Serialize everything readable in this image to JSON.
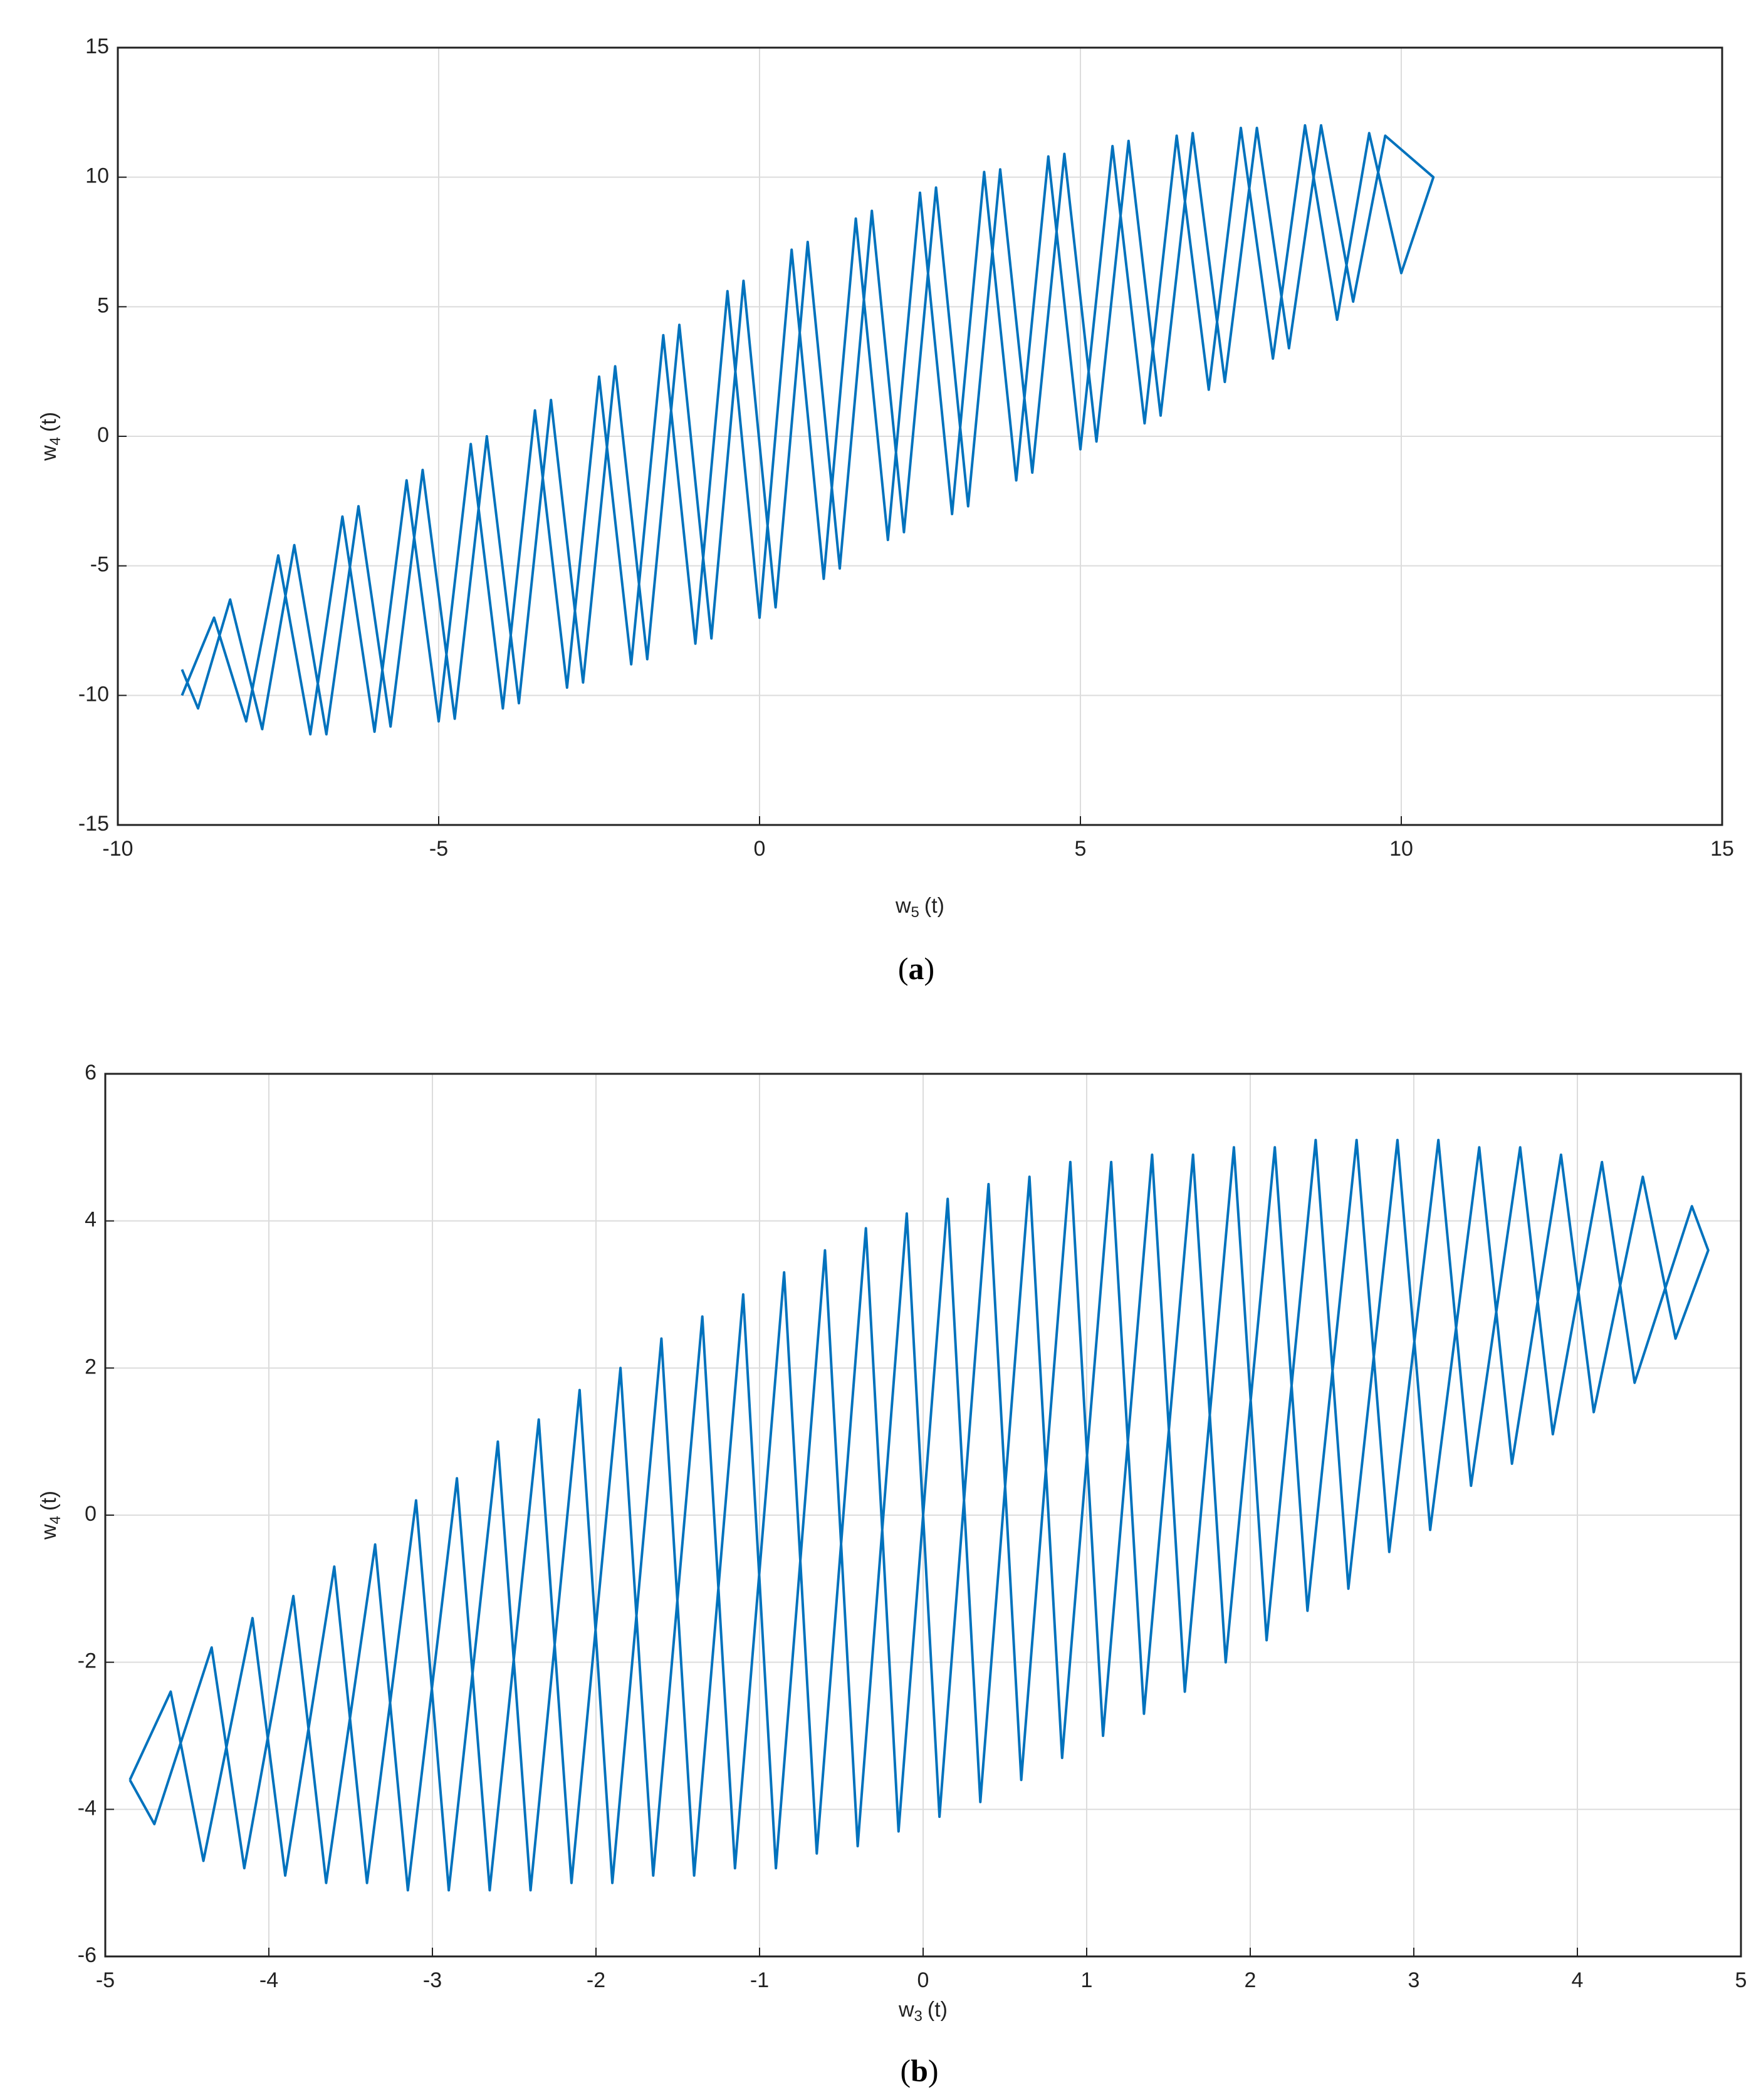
{
  "chart_data": [
    {
      "type": "line",
      "xlabel": [
        "w",
        "5",
        "(t)"
      ],
      "ylabel": [
        "w",
        "4",
        "(t)"
      ],
      "caption": [
        "(",
        "a",
        ")"
      ],
      "xlim": [
        -10,
        15
      ],
      "ylim": [
        -15,
        15
      ],
      "xticks": [
        -10,
        -5,
        0,
        5,
        10,
        15
      ],
      "yticks": [
        -15,
        -10,
        -5,
        0,
        5,
        10,
        15
      ],
      "grid": true,
      "x": [
        -9,
        -8.5,
        -8,
        -7.5,
        -7,
        -6.5,
        -6,
        -5.5,
        -5,
        -4.5,
        -4,
        -3.5,
        -3,
        -2.5,
        -2,
        -1.5,
        -1,
        -0.5,
        0,
        0.5,
        1,
        1.5,
        2,
        2.5,
        3,
        3.5,
        4,
        4.5,
        5,
        5.5,
        6,
        6.5,
        7,
        7.5,
        8,
        8.5,
        9,
        9.5,
        10,
        10.5,
        9.75,
        9.25,
        8.75,
        8.25,
        7.75,
        7.25,
        6.75,
        6.25,
        5.75,
        5.25,
        4.75,
        4.25,
        3.75,
        3.25,
        2.75,
        2.25,
        1.75,
        1.25,
        0.75,
        0.25,
        -0.25,
        -0.75,
        -1.25,
        -1.75,
        -2.25,
        -2.75,
        -3.25,
        -3.75,
        -4.25,
        -4.75,
        -5.25,
        -5.75,
        -6.25,
        -6.75,
        -7.25,
        -7.75,
        -8.25,
        -8.75,
        -9
      ],
      "series": [
        {
          "color": "#0072bd",
          "values": [
            -10,
            -7,
            -11,
            -4.6,
            -11.5,
            -3.1,
            -11.4,
            -1.7,
            -11,
            -0.3,
            -10.5,
            1,
            -9.7,
            2.3,
            -8.8,
            3.9,
            -8,
            5.6,
            -7,
            7.2,
            -5.5,
            8.4,
            -4,
            9.4,
            -3,
            10.2,
            -1.7,
            10.8,
            -0.5,
            11.2,
            0.5,
            11.6,
            1.8,
            11.9,
            3,
            12,
            4.5,
            11.7,
            6.3,
            10,
            11.6,
            5.2,
            12,
            3.4,
            11.9,
            2.1,
            11.7,
            0.8,
            11.4,
            -0.2,
            10.9,
            -1.4,
            10.3,
            -2.7,
            9.6,
            -3.7,
            8.7,
            -5.1,
            7.5,
            -6.6,
            6,
            -7.8,
            4.3,
            -8.6,
            2.7,
            -9.5,
            1.4,
            -10.3,
            0,
            -10.9,
            -1.3,
            -11.2,
            -2.7,
            -11.5,
            -4.2,
            -11.3,
            -6.3,
            -10.5,
            -9
          ]
        }
      ]
    },
    {
      "type": "line",
      "xlabel": [
        "w",
        "3",
        "(t)"
      ],
      "ylabel": [
        "w",
        "4",
        "(t)"
      ],
      "caption": [
        "(",
        "b",
        ")"
      ],
      "xlim": [
        -5,
        5
      ],
      "ylim": [
        -6,
        6
      ],
      "xticks": [
        -5,
        -4,
        -3,
        -2,
        -1,
        0,
        1,
        2,
        3,
        4,
        5
      ],
      "yticks": [
        -6,
        -4,
        -2,
        0,
        2,
        4,
        6
      ],
      "grid": true,
      "x": [
        -4.85,
        -4.6,
        -4.4,
        -4.1,
        -3.9,
        -3.6,
        -3.4,
        -3.1,
        -2.9,
        -2.6,
        -2.4,
        -2.1,
        -1.9,
        -1.6,
        -1.4,
        -1.1,
        -0.9,
        -0.6,
        -0.4,
        -0.1,
        0.1,
        0.4,
        0.6,
        0.9,
        1.1,
        1.4,
        1.6,
        1.9,
        2.1,
        2.4,
        2.6,
        2.9,
        3.1,
        3.4,
        3.6,
        3.9,
        4.1,
        4.4,
        4.6,
        4.8,
        4.7,
        4.35,
        4.15,
        3.85,
        3.65,
        3.35,
        3.15,
        2.85,
        2.65,
        2.35,
        2.15,
        1.85,
        1.65,
        1.35,
        1.15,
        0.85,
        0.65,
        0.35,
        0.15,
        -0.15,
        -0.35,
        -0.65,
        -0.85,
        -1.15,
        -1.35,
        -1.65,
        -1.85,
        -2.15,
        -2.35,
        -2.65,
        -2.85,
        -3.15,
        -3.35,
        -3.65,
        -3.85,
        -4.15,
        -4.35,
        -4.7,
        -4.85
      ],
      "series": [
        {
          "color": "#0072bd",
          "values": [
            -3.6,
            -2.4,
            -4.7,
            -1.4,
            -4.9,
            -0.7,
            -5,
            0.2,
            -5.1,
            1,
            -5.1,
            1.7,
            -5,
            2.4,
            -4.9,
            3,
            -4.8,
            3.6,
            -4.5,
            4.1,
            -4.1,
            4.5,
            -3.6,
            4.8,
            -3,
            4.9,
            -2.4,
            5,
            -1.7,
            5.1,
            -1,
            5.1,
            -0.2,
            5,
            0.7,
            4.9,
            1.4,
            4.6,
            2.4,
            3.6,
            4.2,
            1.8,
            4.8,
            1.1,
            5,
            0.4,
            5.1,
            -0.5,
            5.1,
            -1.3,
            5,
            -2,
            4.9,
            -2.7,
            4.8,
            -3.3,
            4.6,
            -3.9,
            4.3,
            -4.3,
            3.9,
            -4.6,
            3.3,
            -4.8,
            2.7,
            -4.9,
            2,
            -5,
            1.3,
            -5.1,
            0.5,
            -5.1,
            -0.4,
            -5,
            -1.1,
            -4.8,
            -1.8,
            -4.2,
            -3.6
          ]
        }
      ]
    }
  ]
}
